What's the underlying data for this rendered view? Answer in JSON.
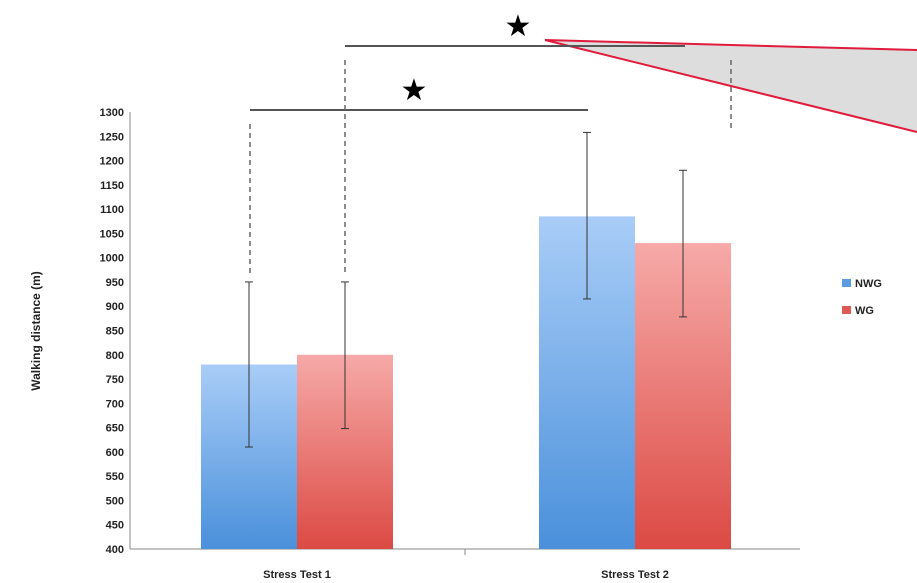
{
  "chart_data": {
    "type": "bar",
    "title": "",
    "xlabel": "",
    "ylabel": "Walking distance (m)",
    "ylim": [
      400,
      1300
    ],
    "yticks": [
      400,
      450,
      500,
      550,
      600,
      650,
      700,
      750,
      800,
      850,
      900,
      950,
      1000,
      1050,
      1100,
      1150,
      1200,
      1250,
      1300
    ],
    "categories": [
      "Stress Test 1",
      "Stress Test 2"
    ],
    "series": [
      {
        "name": "NWG",
        "values": [
          780,
          1085
        ],
        "error_low": [
          610,
          915
        ],
        "error_high": [
          950,
          1258
        ],
        "color": "#5b9be0"
      },
      {
        "name": "WG",
        "values": [
          800,
          1030
        ],
        "error_low": [
          648,
          878
        ],
        "error_high": [
          950,
          1180
        ],
        "color": "#e05a56"
      }
    ],
    "legend_position": "right",
    "grid": false,
    "annotations": [
      {
        "symbol": "★",
        "compares": "NWG Stress Test 1 vs NWG Stress Test 2"
      },
      {
        "symbol": "★",
        "compares": "WG Stress Test 1 vs WG Stress Test 2"
      }
    ]
  }
}
